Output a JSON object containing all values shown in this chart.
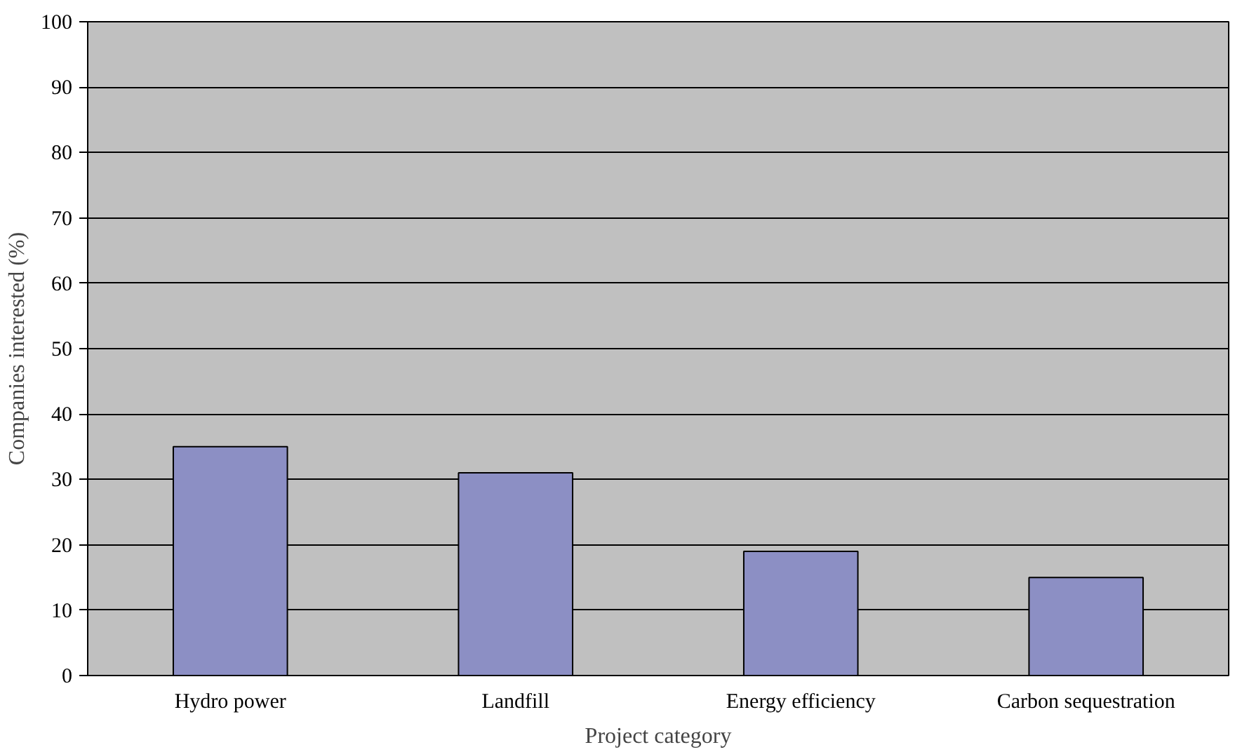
{
  "chart_data": {
    "type": "bar",
    "xlabel": "Project category",
    "ylabel": "Companies interested (%)",
    "categories": [
      "Hydro power",
      "Landfill",
      "Energy efficiency",
      "Carbon sequestration"
    ],
    "values": [
      35,
      31,
      19,
      15
    ],
    "color": "#8c8fc4",
    "ylim": [
      0,
      100
    ],
    "yticks": [
      0,
      10,
      20,
      30,
      40,
      50,
      60,
      70,
      80,
      90,
      100
    ],
    "grid": "y"
  }
}
